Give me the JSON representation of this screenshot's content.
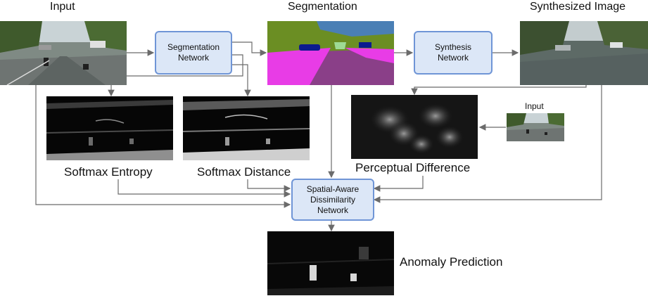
{
  "labels": {
    "input": "Input",
    "segmentation": "Segmentation",
    "synthesized_image": "Synthesized Image",
    "softmax_entropy": "Softmax Entropy",
    "softmax_distance": "Softmax Distance",
    "perceptual_difference": "Perceptual Difference",
    "input_small": "Input",
    "anomaly_prediction": "Anomaly Prediction"
  },
  "boxes": {
    "segmentation_network": {
      "line1": "Segmentation",
      "line2": "Network"
    },
    "synthesis_network": {
      "line1": "Synthesis",
      "line2": "Network"
    },
    "dissimilarity_network": {
      "line1": "Spatial-Aware",
      "line2": "Dissimilarity",
      "line3": "Network"
    }
  },
  "colors": {
    "box_fill": "#dce7f7",
    "box_border": "#6f95d6",
    "arrow": "#6b6b6b",
    "seg_road": "#8a3f88",
    "seg_vegetation": "#6b8e23",
    "seg_sidewalk": "#e83ce6",
    "seg_sky": "#4a7fb5",
    "seg_car": "#0b1a8e"
  }
}
